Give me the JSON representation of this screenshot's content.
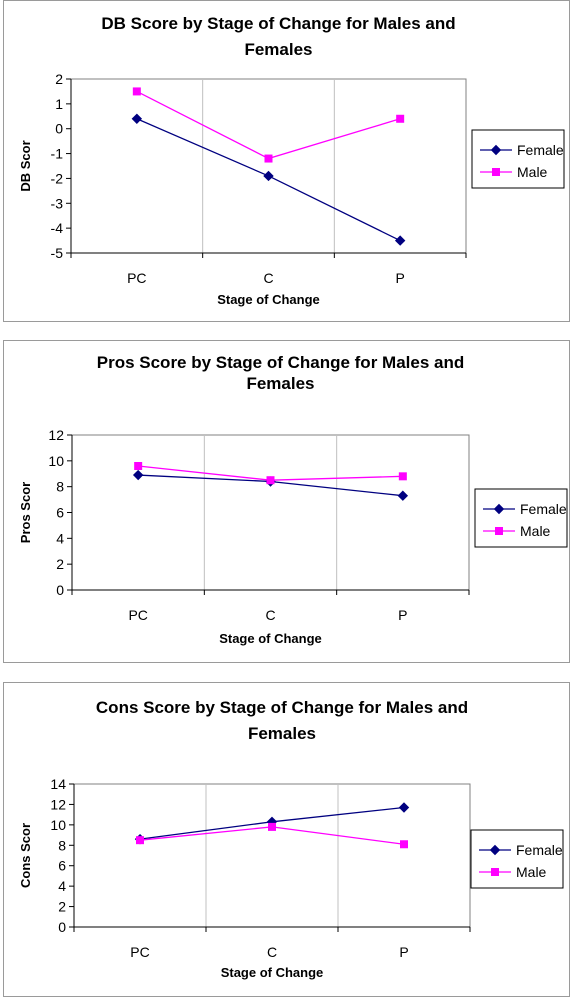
{
  "chart_data": [
    {
      "type": "line",
      "title_lines": [
        "DB Score by Stage of Change for Males and",
        "Females"
      ],
      "xlabel": "Stage of Change",
      "ylabel": "DB Scor",
      "categories": [
        "PC",
        "C",
        "P"
      ],
      "ylim": [
        -5,
        2
      ],
      "yticks": [
        2,
        1,
        0,
        -1,
        -2,
        -3,
        -4,
        -5
      ],
      "grid": "vertical",
      "legend_position": "right",
      "series": [
        {
          "name": "Female",
          "color": "#000080",
          "marker": "diamond",
          "values": [
            0.4,
            -1.9,
            -4.5
          ]
        },
        {
          "name": "Male",
          "color": "#ff00ff",
          "marker": "square",
          "values": [
            1.5,
            -1.2,
            0.4
          ]
        }
      ]
    },
    {
      "type": "line",
      "title_lines": [
        "Pros Score by Stage of Change for Males and",
        "Females"
      ],
      "xlabel": "Stage of Change",
      "ylabel": "Pros Scor",
      "categories": [
        "PC",
        "C",
        "P"
      ],
      "ylim": [
        0,
        12
      ],
      "yticks": [
        12,
        10,
        8,
        6,
        4,
        2,
        0
      ],
      "grid": "vertical",
      "legend_position": "right",
      "series": [
        {
          "name": "Female",
          "color": "#000080",
          "marker": "diamond",
          "values": [
            8.9,
            8.4,
            7.3
          ]
        },
        {
          "name": "Male",
          "color": "#ff00ff",
          "marker": "square",
          "values": [
            9.6,
            8.5,
            8.8
          ]
        }
      ]
    },
    {
      "type": "line",
      "title_lines": [
        "Cons Score by Stage of Change for Males and",
        "Females"
      ],
      "xlabel": "Stage of Change",
      "ylabel": "Cons Scor",
      "categories": [
        "PC",
        "C",
        "P"
      ],
      "ylim": [
        0,
        14
      ],
      "yticks": [
        14,
        12,
        10,
        8,
        6,
        4,
        2,
        0
      ],
      "grid": "vertical",
      "legend_position": "right",
      "series": [
        {
          "name": "Female",
          "color": "#000080",
          "marker": "diamond",
          "values": [
            8.6,
            10.3,
            11.7
          ]
        },
        {
          "name": "Male",
          "color": "#ff00ff",
          "marker": "square",
          "values": [
            8.5,
            9.8,
            8.1
          ]
        }
      ]
    }
  ]
}
